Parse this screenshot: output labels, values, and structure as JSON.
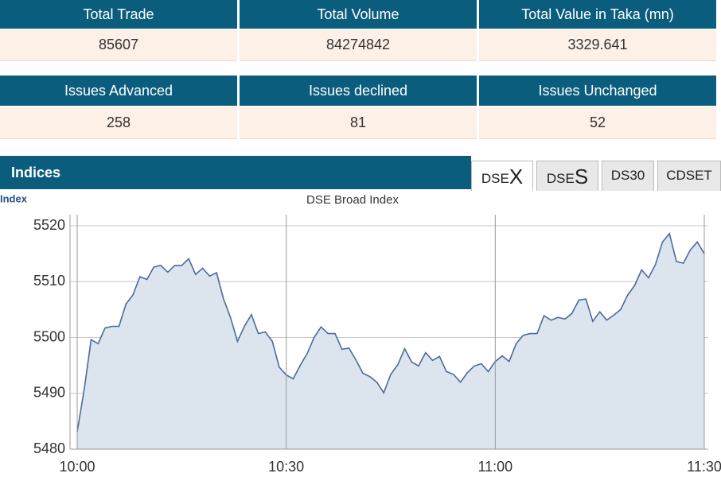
{
  "tables": [
    {
      "headers": [
        "Total Trade",
        "Total Volume",
        "Total Value in Taka (mn)"
      ],
      "values": [
        85607,
        84274842,
        3329.641
      ]
    },
    {
      "headers": [
        "Issues Advanced",
        "Issues declined",
        "Issues Unchanged"
      ],
      "values": [
        258,
        81,
        52
      ]
    }
  ],
  "indices": {
    "title": "Indices",
    "tabs": [
      {
        "prefix": "DSE",
        "suffix": "X"
      },
      {
        "prefix": "DSE",
        "suffix": "S"
      },
      {
        "label": "DS30"
      },
      {
        "label": "CDSET"
      }
    ]
  },
  "chart_data": {
    "type": "area",
    "title": "DSE Broad Index",
    "y_label": "Index",
    "categories": [
      "10:00",
      null,
      null,
      null,
      null,
      null,
      null,
      null,
      null,
      null,
      null,
      null,
      null,
      null,
      null,
      null,
      null,
      null,
      null,
      null,
      null,
      null,
      null,
      null,
      null,
      null,
      null,
      null,
      null,
      null,
      "10:30",
      null,
      null,
      null,
      null,
      null,
      null,
      null,
      null,
      null,
      null,
      null,
      null,
      null,
      null,
      null,
      null,
      null,
      null,
      null,
      null,
      null,
      null,
      null,
      null,
      null,
      null,
      null,
      null,
      null,
      "11:00",
      null,
      null,
      null,
      null,
      null,
      null,
      null,
      null,
      null,
      null,
      null,
      null,
      null,
      null,
      null,
      null,
      null,
      null,
      null,
      null,
      null,
      null,
      null,
      null,
      null,
      null,
      null,
      null,
      null,
      "11:30"
    ],
    "values": [
      5483.1,
      5490.7,
      5499.6,
      5498.9,
      5501.7,
      5502,
      5502,
      5506,
      5507.6,
      5510.9,
      5510.4,
      5512.6,
      5512.9,
      5511.7,
      5512.9,
      5512.9,
      5514.1,
      5511.3,
      5512.4,
      5511,
      5511.6,
      5506.9,
      5503.6,
      5499.3,
      5502,
      5504.1,
      5500.7,
      5501,
      5499.3,
      5494.7,
      5493.3,
      5492.6,
      5495,
      5497.1,
      5500,
      5501.9,
      5500.7,
      5500.7,
      5497.9,
      5498.1,
      5496,
      5493.6,
      5493,
      5492,
      5490.1,
      5493.4,
      5495.1,
      5498,
      5495.6,
      5494.9,
      5497.3,
      5495.9,
      5496.6,
      5493.9,
      5493.4,
      5492,
      5493.7,
      5494.9,
      5495.3,
      5493.9,
      5495.7,
      5496.7,
      5495.7,
      5498.9,
      5500.4,
      5500.7,
      5500.7,
      5503.9,
      5503.1,
      5503.6,
      5503.3,
      5504.3,
      5506.7,
      5506.9,
      5502.9,
      5504.6,
      5503.1,
      5504,
      5505,
      5507.6,
      5509.3,
      5512.1,
      5510.7,
      5513.1,
      5517.1,
      5518.6,
      5513.6,
      5513.3,
      5515.7,
      5517.1,
      5515
    ],
    "color": "#4a6b9c",
    "fill": "#dce4ee",
    "ylim": [
      5480,
      5522
    ],
    "yticks": [
      5480,
      5490,
      5500,
      5510,
      5520
    ],
    "grid": true
  }
}
